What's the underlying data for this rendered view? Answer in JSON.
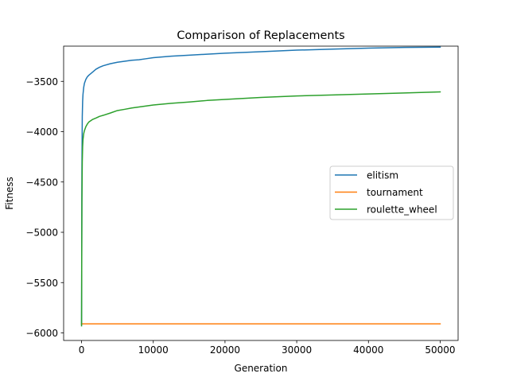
{
  "chart_data": {
    "type": "line",
    "title": "Comparison of Replacements",
    "xlabel": "Generation",
    "ylabel": "Fitness",
    "xlim": [
      -2500,
      52500
    ],
    "ylim": [
      -6075,
      -3150
    ],
    "xticks": [
      0,
      10000,
      20000,
      30000,
      40000,
      50000
    ],
    "xtick_labels": [
      "0",
      "10000",
      "20000",
      "30000",
      "40000",
      "50000"
    ],
    "yticks": [
      -6000,
      -5500,
      -5000,
      -4500,
      -4000,
      -3500
    ],
    "ytick_labels": [
      "−6000",
      "−5500",
      "−5000",
      "−4500",
      "−4000",
      "−3500"
    ],
    "grid": false,
    "legend_position": "center-right",
    "series": [
      {
        "name": "elitism",
        "color": "#1f77b4",
        "x": [
          0,
          50,
          100,
          150,
          200,
          300,
          400,
          600,
          800,
          1000,
          1500,
          2000,
          2500,
          3000,
          4000,
          5000,
          6000,
          7000,
          8000,
          9000,
          10000,
          12500,
          15000,
          17500,
          20000,
          25000,
          30000,
          35000,
          40000,
          45000,
          50000
        ],
        "y": [
          -5920,
          -4400,
          -3850,
          -3700,
          -3630,
          -3560,
          -3520,
          -3480,
          -3455,
          -3440,
          -3410,
          -3380,
          -3360,
          -3345,
          -3325,
          -3310,
          -3300,
          -3290,
          -3285,
          -3275,
          -3265,
          -3250,
          -3240,
          -3230,
          -3220,
          -3205,
          -3190,
          -3180,
          -3170,
          -3163,
          -3160
        ]
      },
      {
        "name": "tournament",
        "color": "#ff7f0e",
        "x": [
          0,
          50000
        ],
        "y": [
          -5910,
          -5910
        ]
      },
      {
        "name": "roulette_wheel",
        "color": "#2ca02c",
        "x": [
          0,
          50,
          100,
          150,
          200,
          300,
          400,
          600,
          800,
          1000,
          1500,
          2000,
          2500,
          3000,
          4000,
          5000,
          6000,
          7000,
          8000,
          9000,
          10000,
          12500,
          15000,
          17500,
          20000,
          25000,
          30000,
          35000,
          40000,
          45000,
          50000
        ],
        "y": [
          -5930,
          -4700,
          -4300,
          -4150,
          -4080,
          -4020,
          -3990,
          -3950,
          -3925,
          -3905,
          -3880,
          -3865,
          -3848,
          -3838,
          -3815,
          -3790,
          -3778,
          -3765,
          -3755,
          -3745,
          -3735,
          -3718,
          -3705,
          -3690,
          -3680,
          -3660,
          -3645,
          -3635,
          -3625,
          -3615,
          -3605
        ]
      }
    ]
  }
}
